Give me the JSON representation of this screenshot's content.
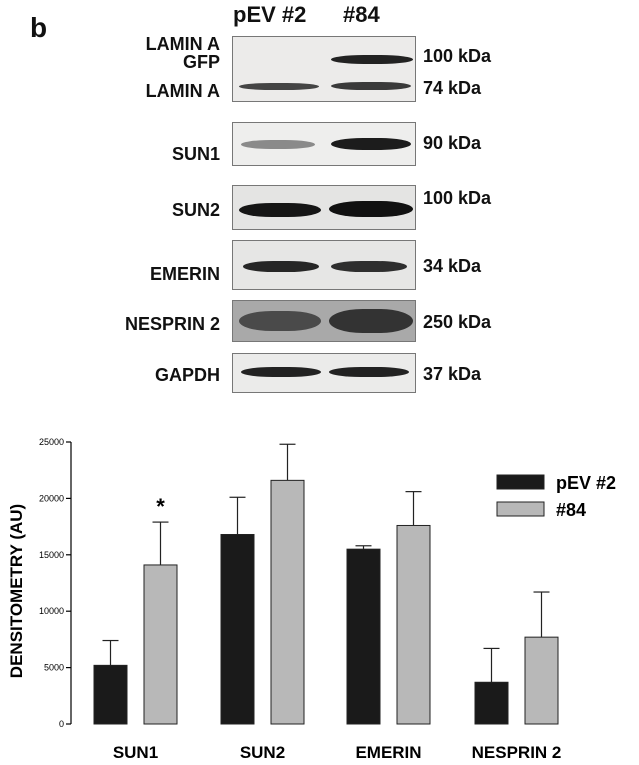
{
  "figure": {
    "panel_letter": "b",
    "lanes": [
      "pEV #2",
      "#84"
    ],
    "blots": [
      {
        "labels": [
          "LAMIN A",
          "GFP",
          "LAMIN A"
        ],
        "kda": [
          "100 kDa",
          "74 kDa"
        ]
      },
      {
        "labels": [
          "SUN1"
        ],
        "kda": [
          "90 kDa"
        ]
      },
      {
        "labels": [
          "SUN2"
        ],
        "kda": [
          "100 kDa"
        ]
      },
      {
        "labels": [
          "EMERIN"
        ],
        "kda": [
          "34 kDa"
        ]
      },
      {
        "labels": [
          "NESPRIN 2"
        ],
        "kda": [
          "250 kDa"
        ]
      },
      {
        "labels": [
          "GAPDH"
        ],
        "kda": [
          "37 kDa"
        ]
      }
    ]
  },
  "chart_data": {
    "type": "bar",
    "categories": [
      "SUN1",
      "SUN2",
      "EMERIN",
      "NESPRIN 2"
    ],
    "series": [
      {
        "name": "pEV #2",
        "values": [
          5200,
          16800,
          15500,
          3700
        ],
        "errors": [
          2200,
          3300,
          300,
          3000
        ],
        "color": "#1a1a1a"
      },
      {
        "name": "#84",
        "values": [
          14100,
          21600,
          17600,
          7700
        ],
        "errors": [
          3800,
          3200,
          3000,
          4000
        ],
        "color": "#b8b8b8"
      }
    ],
    "ylabel": "DENSITOMETRY (AU)",
    "ylim": [
      0,
      25000
    ],
    "yticks": [
      "0",
      "5000",
      "10000",
      "15000",
      "20000",
      "25000"
    ],
    "annotations": [
      {
        "category": "SUN1",
        "series": "#84",
        "text": "*"
      }
    ],
    "legend_position": "top-right",
    "grid": false
  }
}
